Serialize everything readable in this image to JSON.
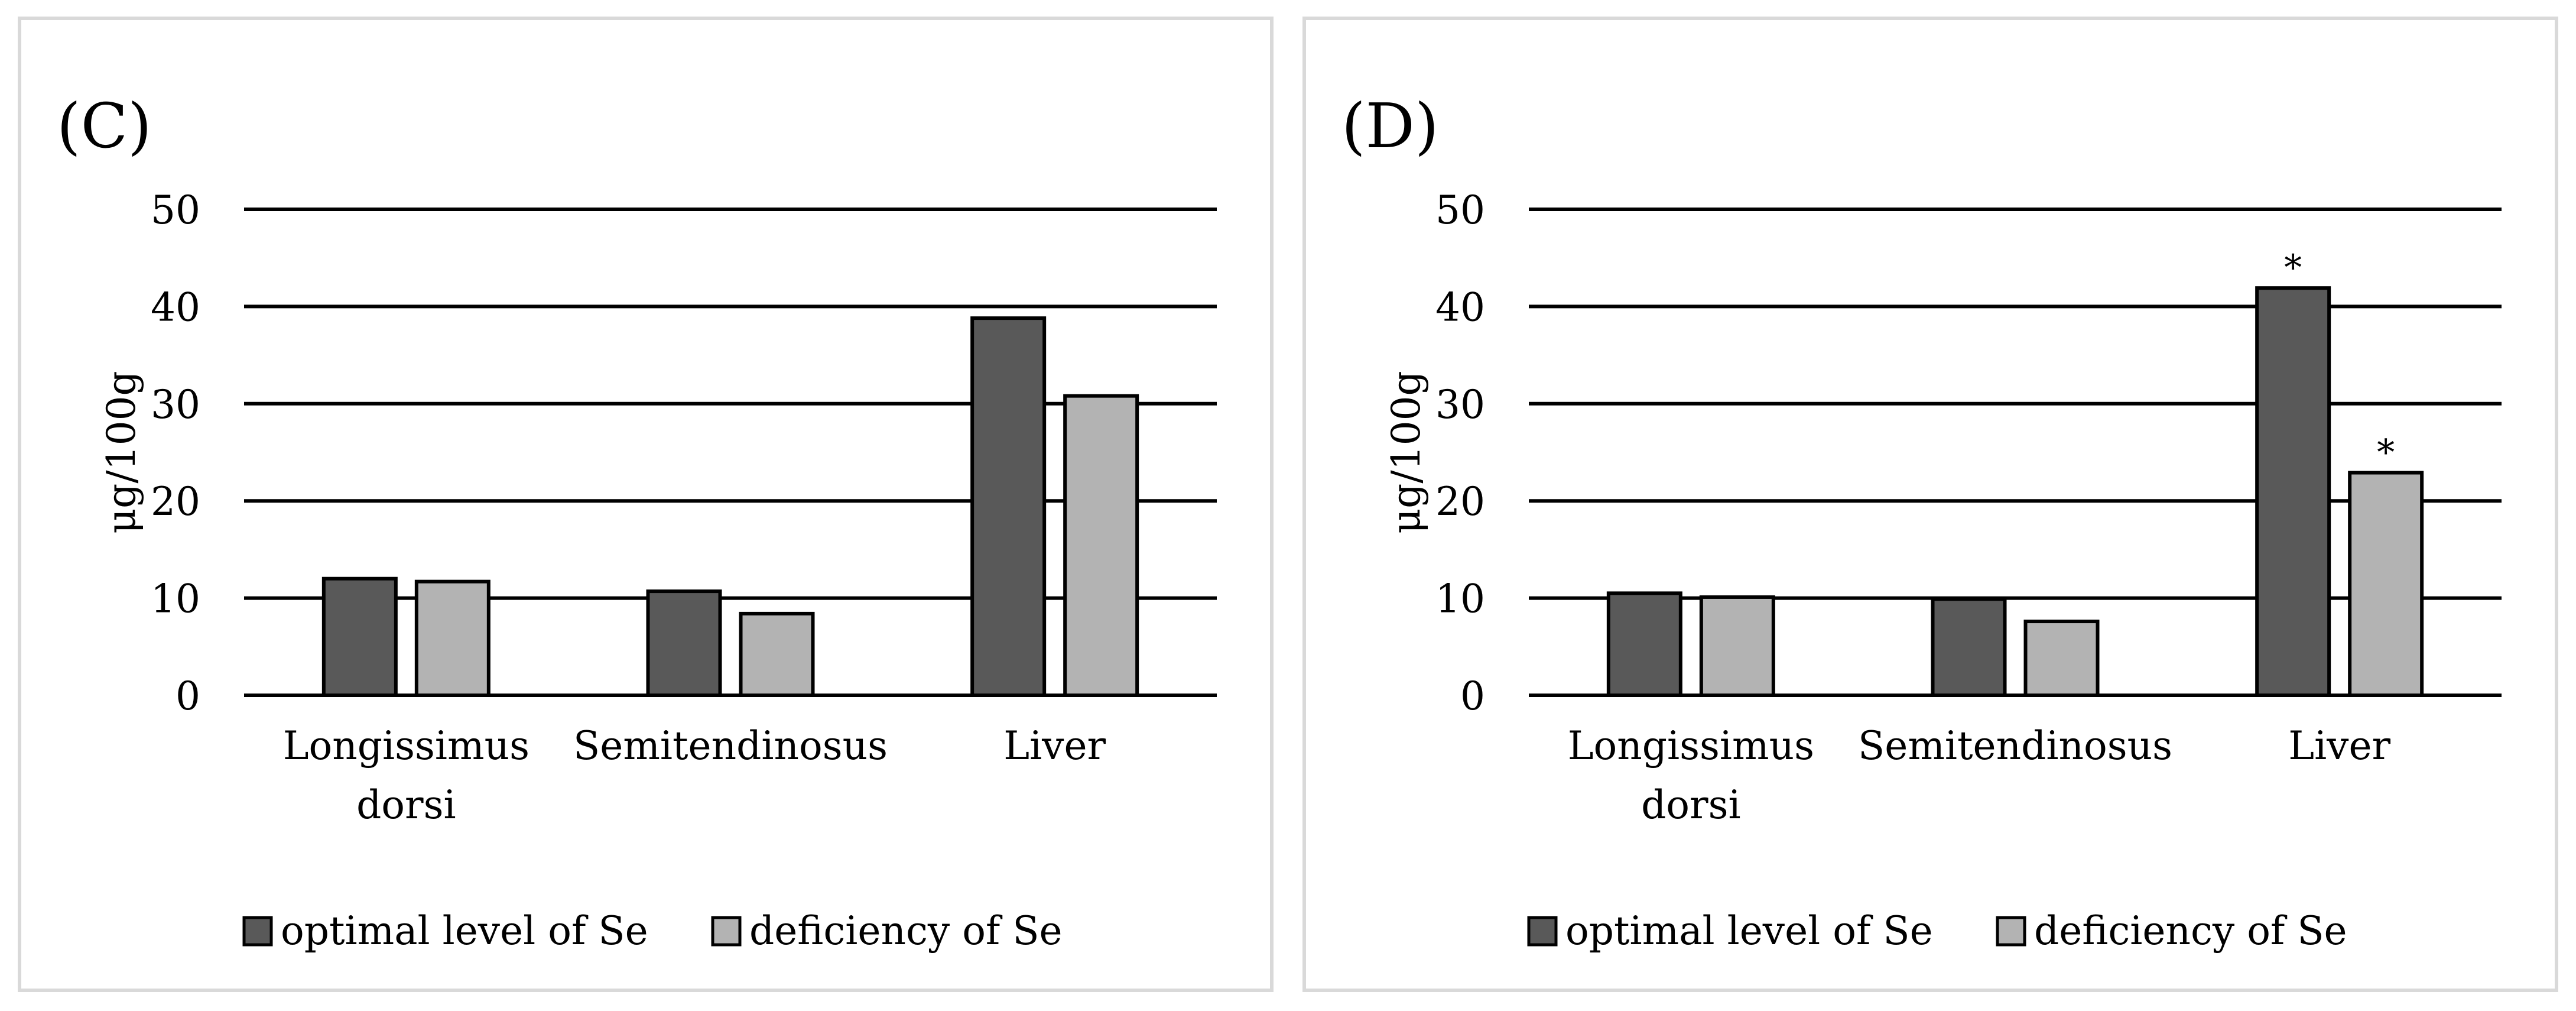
{
  "chart_data": [
    {
      "type": "bar",
      "panel_label": "(C)",
      "ylabel": "μg/100g",
      "ylim": [
        0,
        50
      ],
      "yticks": [
        0,
        10,
        20,
        30,
        40,
        50
      ],
      "categories": [
        [
          "Longissimus",
          "dorsi"
        ],
        [
          "Semitendinosus"
        ],
        [
          "Liver"
        ]
      ],
      "series": [
        {
          "name": "optimal level of Se",
          "color": "#595959",
          "values": [
            12.0,
            10.7,
            38.8
          ],
          "annotations": [
            "",
            "",
            ""
          ]
        },
        {
          "name": "deficiency of Se",
          "color": "#b3b3b3",
          "values": [
            11.7,
            8.4,
            30.8
          ],
          "annotations": [
            "",
            "",
            ""
          ]
        }
      ],
      "grid": true,
      "legend": "bottom"
    },
    {
      "type": "bar",
      "panel_label": "(D)",
      "ylabel": "μg/100g",
      "ylim": [
        0,
        50
      ],
      "yticks": [
        0,
        10,
        20,
        30,
        40,
        50
      ],
      "categories": [
        [
          "Longissimus",
          "dorsi"
        ],
        [
          "Semitendinosus"
        ],
        [
          "Liver"
        ]
      ],
      "series": [
        {
          "name": "optimal level of Se",
          "color": "#595959",
          "values": [
            10.5,
            9.9,
            41.9
          ],
          "annotations": [
            "",
            "",
            "*"
          ]
        },
        {
          "name": "deficiency of Se",
          "color": "#b3b3b3",
          "values": [
            10.1,
            7.6,
            22.9
          ],
          "annotations": [
            "",
            "",
            "*"
          ]
        }
      ],
      "grid": true,
      "legend": "bottom"
    }
  ]
}
